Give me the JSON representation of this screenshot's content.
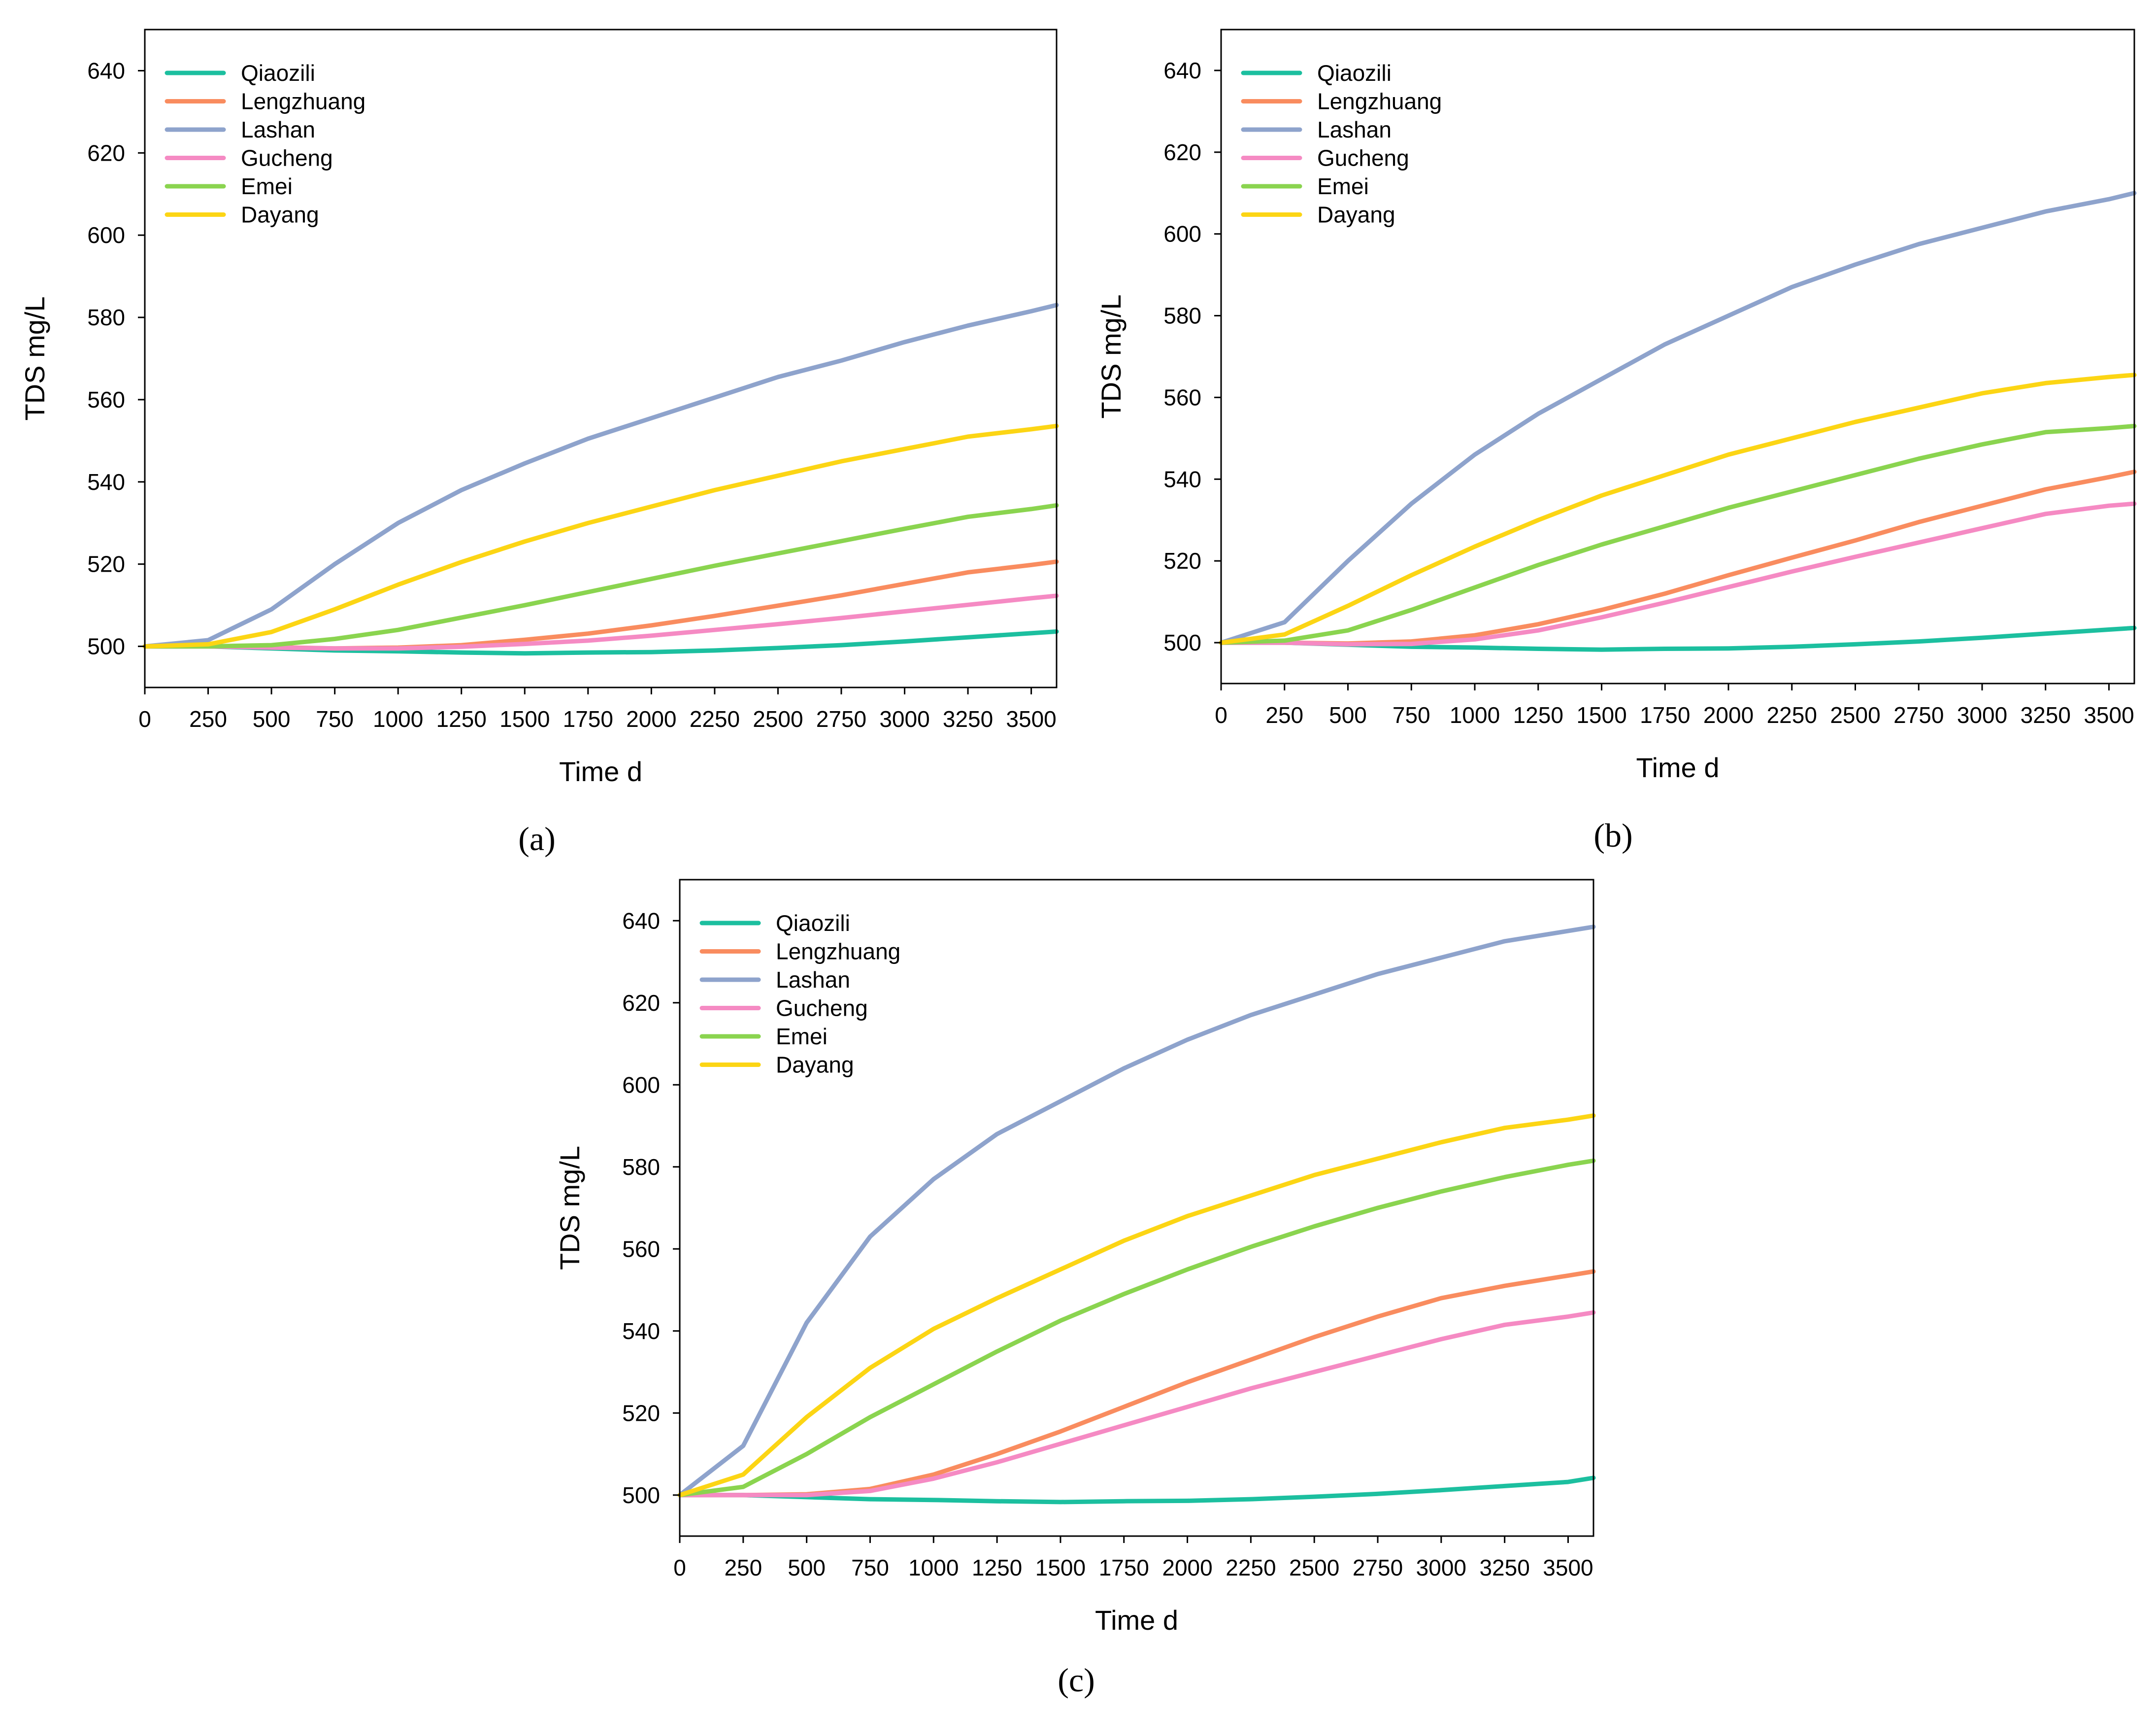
{
  "chart_data": [
    {
      "type": "line",
      "panel_label": "a",
      "panel_label_text": "(a)",
      "xlabel": "Time d",
      "ylabel": "TDS mg/L",
      "xlim": [
        0,
        3600
      ],
      "ylim": [
        490,
        650
      ],
      "xticks": [
        0,
        250,
        500,
        750,
        1000,
        1250,
        1500,
        1750,
        2000,
        2250,
        2500,
        2750,
        3000,
        3250,
        3500
      ],
      "yticks": [
        500,
        520,
        540,
        560,
        580,
        600,
        620,
        640
      ],
      "grid": false,
      "legend_position": "top-left",
      "x": [
        0,
        250,
        500,
        750,
        1000,
        1250,
        1500,
        1750,
        2000,
        2250,
        2500,
        2750,
        3000,
        3250,
        3500,
        3600
      ],
      "series": [
        {
          "name": "Qiaozili",
          "color": "#1cbf9f",
          "values": [
            500,
            500,
            499.5,
            499,
            498.8,
            498.5,
            498.3,
            498.5,
            498.6,
            499,
            499.6,
            500.3,
            501.2,
            502.2,
            503.2,
            503.6
          ]
        },
        {
          "name": "Lengzhuang",
          "color": "#f98c5f",
          "values": [
            500,
            500,
            499.8,
            499.5,
            499.7,
            500.3,
            501.6,
            503.1,
            505.1,
            507.4,
            509.9,
            512.4,
            515.2,
            518,
            519.8,
            520.6
          ]
        },
        {
          "name": "Lashan",
          "color": "#8ea3cc",
          "values": [
            500,
            501.5,
            509,
            520,
            530,
            538,
            544.5,
            550.5,
            555.5,
            560.5,
            565.5,
            569.5,
            574,
            578,
            581.5,
            583
          ]
        },
        {
          "name": "Gucheng",
          "color": "#f58ac3",
          "values": [
            500,
            500,
            499.7,
            499.5,
            499.5,
            499.9,
            500.6,
            501.4,
            502.6,
            504,
            505.4,
            506.9,
            508.5,
            510.1,
            511.7,
            512.3
          ]
        },
        {
          "name": "Emei",
          "color": "#8ad44f",
          "values": [
            500,
            500,
            500.3,
            501.8,
            504,
            507,
            510,
            513.2,
            516.4,
            519.6,
            522.6,
            525.6,
            528.6,
            531.5,
            533.4,
            534.3
          ]
        },
        {
          "name": "Dayang",
          "color": "#fcd514",
          "values": [
            500,
            500.5,
            503.5,
            509,
            515,
            520.5,
            525.5,
            530,
            534,
            538,
            541.5,
            545,
            548,
            551,
            552.8,
            553.6
          ]
        }
      ]
    },
    {
      "type": "line",
      "panel_label": "b",
      "panel_label_text": "(b)",
      "xlabel": "Time d",
      "ylabel": "TDS mg/L",
      "xlim": [
        0,
        3600
      ],
      "ylim": [
        490,
        650
      ],
      "xticks": [
        0,
        250,
        500,
        750,
        1000,
        1250,
        1500,
        1750,
        2000,
        2250,
        2500,
        2750,
        3000,
        3250,
        3500
      ],
      "yticks": [
        500,
        520,
        540,
        560,
        580,
        600,
        620,
        640
      ],
      "grid": false,
      "legend_position": "top-left",
      "x": [
        0,
        250,
        500,
        750,
        1000,
        1250,
        1500,
        1750,
        2000,
        2250,
        2500,
        2750,
        3000,
        3250,
        3500,
        3600
      ],
      "series": [
        {
          "name": "Qiaozili",
          "color": "#1cbf9f",
          "values": [
            500,
            500,
            499.5,
            499,
            498.8,
            498.5,
            498.3,
            498.5,
            498.6,
            499,
            499.6,
            500.3,
            501.2,
            502.2,
            503.2,
            503.6
          ]
        },
        {
          "name": "Lengzhuang",
          "color": "#f98c5f",
          "values": [
            500,
            500,
            499.8,
            500.3,
            501.8,
            504.5,
            508,
            512,
            516.5,
            520.8,
            525,
            529.5,
            533.5,
            537.5,
            540.5,
            541.8
          ]
        },
        {
          "name": "Lashan",
          "color": "#8ea3cc",
          "values": [
            500,
            505,
            520,
            534,
            546,
            556,
            564.5,
            573,
            580,
            587,
            592.5,
            597.5,
            601.5,
            605.5,
            608.5,
            610
          ]
        },
        {
          "name": "Gucheng",
          "color": "#f58ac3",
          "values": [
            500,
            500,
            499.6,
            499.7,
            500.8,
            503,
            506.2,
            509.8,
            513.6,
            517.4,
            521,
            524.5,
            528,
            531.5,
            533.5,
            534
          ]
        },
        {
          "name": "Emei",
          "color": "#8ad44f",
          "values": [
            500,
            500.5,
            503,
            508,
            513.5,
            519,
            524,
            528.5,
            533,
            537,
            541,
            545,
            548.5,
            551.5,
            552.5,
            553
          ]
        },
        {
          "name": "Dayang",
          "color": "#fcd514",
          "values": [
            500,
            502,
            509,
            516.5,
            523.5,
            530,
            536,
            541,
            546,
            550,
            554,
            557.5,
            561,
            563.5,
            565,
            565.5
          ]
        }
      ]
    },
    {
      "type": "line",
      "panel_label": "c",
      "panel_label_text": "(c)",
      "xlabel": "Time d",
      "ylabel": "TDS mg/L",
      "xlim": [
        0,
        3600
      ],
      "ylim": [
        490,
        650
      ],
      "xticks": [
        0,
        250,
        500,
        750,
        1000,
        1250,
        1500,
        1750,
        2000,
        2250,
        2500,
        2750,
        3000,
        3250,
        3500
      ],
      "yticks": [
        500,
        520,
        540,
        560,
        580,
        600,
        620,
        640
      ],
      "grid": false,
      "legend_position": "top-left",
      "x": [
        0,
        250,
        500,
        750,
        1000,
        1250,
        1500,
        1750,
        2000,
        2250,
        2500,
        2750,
        3000,
        3250,
        3500,
        3600
      ],
      "series": [
        {
          "name": "Qiaozili",
          "color": "#1cbf9f",
          "values": [
            500,
            500,
            499.5,
            499,
            498.8,
            498.5,
            498.3,
            498.5,
            498.6,
            499,
            499.6,
            500.3,
            501.2,
            502.2,
            503.2,
            504.2
          ]
        },
        {
          "name": "Lengzhuang",
          "color": "#f98c5f",
          "values": [
            500,
            500,
            500.2,
            501.5,
            505,
            510,
            515.5,
            521.5,
            527.5,
            533,
            538.5,
            543.5,
            548,
            551,
            553.5,
            554.5
          ]
        },
        {
          "name": "Lashan",
          "color": "#8ea3cc",
          "values": [
            500,
            512,
            542,
            563,
            577,
            588,
            596,
            604,
            611,
            617,
            622,
            627,
            631,
            635,
            637.5,
            638.5
          ]
        },
        {
          "name": "Gucheng",
          "color": "#f58ac3",
          "values": [
            500,
            500,
            500,
            501,
            504,
            508,
            512.5,
            517,
            521.5,
            526,
            530,
            534,
            538,
            541.5,
            543.5,
            544.5
          ]
        },
        {
          "name": "Emei",
          "color": "#8ad44f",
          "values": [
            500,
            502,
            510,
            519,
            527,
            535,
            542.5,
            549,
            555,
            560.5,
            565.5,
            570,
            574,
            577.5,
            580.5,
            581.5
          ]
        },
        {
          "name": "Dayang",
          "color": "#fcd514",
          "values": [
            500,
            505,
            519,
            531,
            540.5,
            548,
            555,
            562,
            568,
            573,
            578,
            582,
            586,
            589.5,
            591.5,
            592.5
          ]
        }
      ]
    }
  ]
}
